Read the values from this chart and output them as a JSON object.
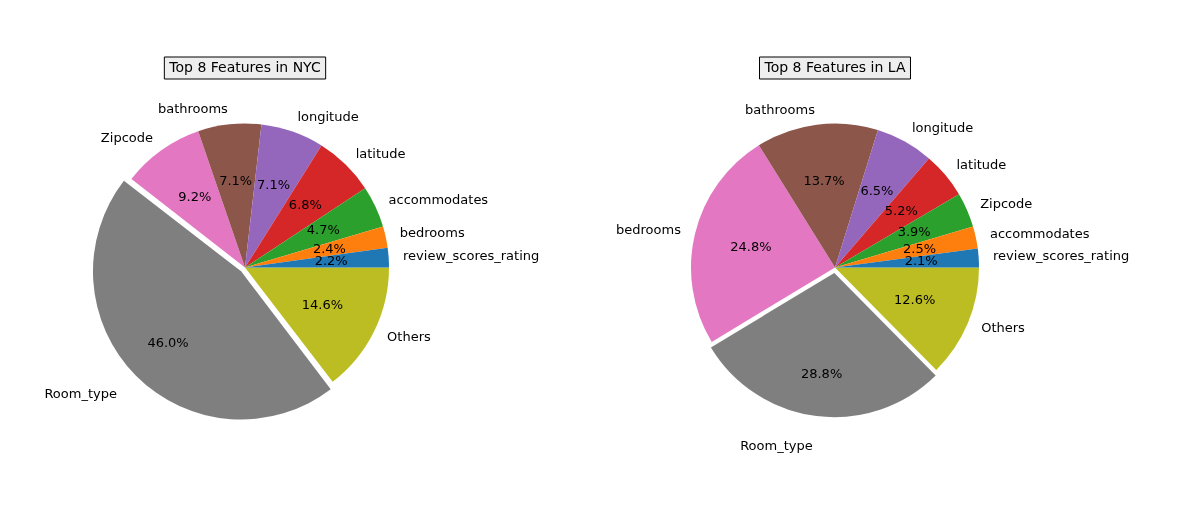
{
  "chart_data": [
    {
      "type": "pie",
      "title": "Top 8 Features in NYC",
      "categories": [
        "review_scores_rating",
        "bedrooms",
        "accommodates",
        "latitude",
        "longitude",
        "bathrooms",
        "Zipcode",
        "Room_type",
        "Others"
      ],
      "values": [
        2.2,
        2.4,
        4.7,
        6.8,
        7.1,
        7.1,
        9.2,
        46.0,
        14.6
      ],
      "value_labels": [
        "2.2%",
        "2.4%",
        "4.7%",
        "6.8%",
        "7.1%",
        "7.1%",
        "9.2%",
        "46.0%",
        "14.6%"
      ],
      "colors": [
        "#1f77b4",
        "#ff7f0e",
        "#2ca02c",
        "#d62728",
        "#9467bd",
        "#8c564b",
        "#e377c2",
        "#7f7f7f",
        "#bcbd22"
      ]
    },
    {
      "type": "pie",
      "title": "Top 8 Features in LA",
      "categories": [
        "review_scores_rating",
        "accommodates",
        "Zipcode",
        "latitude",
        "longitude",
        "bathrooms",
        "bedrooms",
        "Room_type",
        "Others"
      ],
      "values": [
        2.1,
        2.5,
        3.9,
        5.2,
        6.5,
        13.7,
        24.8,
        28.8,
        12.6
      ],
      "value_labels": [
        "2.1%",
        "2.5%",
        "3.9%",
        "5.2%",
        "6.5%",
        "13.7%",
        "24.8%",
        "28.8%",
        "12.6%"
      ],
      "colors": [
        "#1f77b4",
        "#ff7f0e",
        "#2ca02c",
        "#d62728",
        "#9467bd",
        "#8c564b",
        "#e377c2",
        "#7f7f7f",
        "#bcbd22"
      ]
    }
  ]
}
